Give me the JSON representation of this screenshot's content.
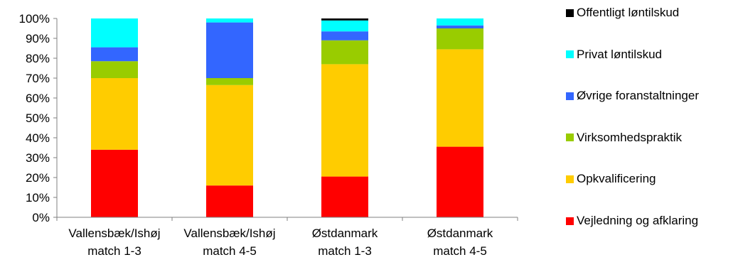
{
  "chart_data": {
    "type": "bar",
    "stacked": true,
    "percent": true,
    "categories": [
      [
        "Vallensbæk/Ishøj",
        "match 1-3"
      ],
      [
        "Vallensbæk/Ishøj",
        "match 4-5"
      ],
      [
        "Østdanmark",
        "match 1-3"
      ],
      [
        "Østdanmark",
        "match 4-5"
      ]
    ],
    "ylim": [
      0,
      100
    ],
    "yticks": [
      "0%",
      "10%",
      "20%",
      "30%",
      "40%",
      "50%",
      "60%",
      "70%",
      "80%",
      "90%",
      "100%"
    ],
    "grid": false,
    "legend_position": "right",
    "series": [
      {
        "name": "Vejledning og afklaring",
        "color": "#ff0000",
        "values": [
          34,
          16,
          20.5,
          35.5
        ]
      },
      {
        "name": "Opkvalificering",
        "color": "#ffcc00",
        "values": [
          36,
          50.5,
          56.5,
          49
        ]
      },
      {
        "name": "Virksomhedspraktik",
        "color": "#99cc00",
        "values": [
          8.5,
          3.5,
          12,
          10.5
        ]
      },
      {
        "name": "Øvrige foranstaltninger",
        "color": "#3366ff",
        "values": [
          7,
          28,
          4.5,
          1.5
        ]
      },
      {
        "name": "Privat løntilskud",
        "color": "#00ffff",
        "values": [
          14.5,
          2,
          5.5,
          3.5
        ]
      },
      {
        "name": "Offentligt løntilskud",
        "color": "#000000",
        "values": [
          0,
          0,
          1,
          0
        ]
      }
    ]
  }
}
